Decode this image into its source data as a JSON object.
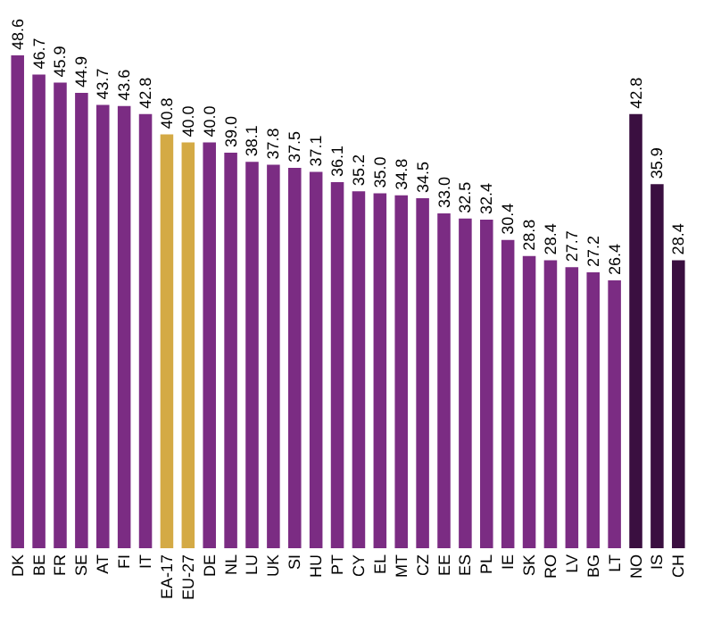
{
  "chart_data": {
    "type": "bar",
    "categories": [
      "DK",
      "BE",
      "FR",
      "SE",
      "AT",
      "FI",
      "IT",
      "EA-17",
      "EU-27",
      "DE",
      "NL",
      "LU",
      "UK",
      "SI",
      "HU",
      "PT",
      "CY",
      "EL",
      "MT",
      "CZ",
      "EE",
      "ES",
      "PL",
      "IE",
      "SK",
      "RO",
      "LV",
      "BG",
      "LT",
      "NO",
      "IS",
      "CH"
    ],
    "values": [
      48.6,
      46.7,
      45.9,
      44.9,
      43.7,
      43.6,
      42.8,
      40.8,
      40.0,
      40.0,
      39.0,
      38.1,
      37.8,
      37.5,
      37.1,
      36.1,
      35.2,
      35.0,
      34.8,
      34.5,
      33.0,
      32.5,
      32.4,
      30.4,
      28.8,
      28.4,
      27.7,
      27.2,
      26.4,
      42.8,
      35.9,
      28.4
    ],
    "colors": [
      "#7b2c83",
      "#7b2c83",
      "#7b2c83",
      "#7b2c83",
      "#7b2c83",
      "#7b2c83",
      "#7b2c83",
      "#d4aa45",
      "#d4aa45",
      "#7b2c83",
      "#7b2c83",
      "#7b2c83",
      "#7b2c83",
      "#7b2c83",
      "#7b2c83",
      "#7b2c83",
      "#7b2c83",
      "#7b2c83",
      "#7b2c83",
      "#7b2c83",
      "#7b2c83",
      "#7b2c83",
      "#7b2c83",
      "#7b2c83",
      "#7b2c83",
      "#7b2c83",
      "#7b2c83",
      "#7b2c83",
      "#7b2c83",
      "#3a0f40",
      "#3a0f40",
      "#3a0f40"
    ],
    "tick_labels": "x",
    "value_labels": [
      "48.6",
      "46.7",
      "45.9",
      "44.9",
      "43.7",
      "43.6",
      "42.8",
      "40.8",
      "40.0",
      "40.0",
      "39.0",
      "38.1",
      "37.8",
      "37.5",
      "37.1",
      "36.1",
      "35.2",
      "35.0",
      "34.8",
      "34.5",
      "33.0",
      "32.5",
      "32.4",
      "30.4",
      "28.8",
      "28.4",
      "27.7",
      "27.2",
      "26.4",
      "42.8",
      "35.9",
      "28.4"
    ]
  }
}
